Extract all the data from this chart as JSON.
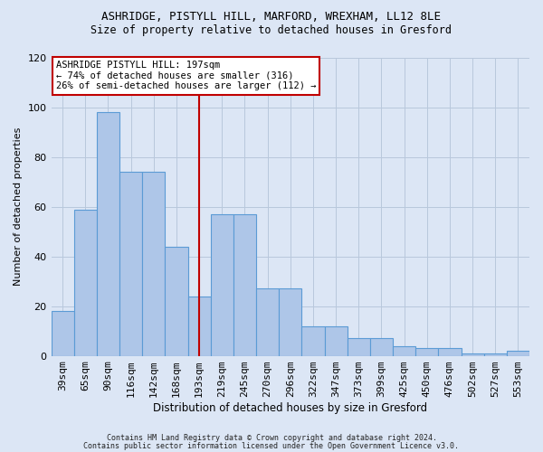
{
  "title1": "ASHRIDGE, PISTYLL HILL, MARFORD, WREXHAM, LL12 8LE",
  "title2": "Size of property relative to detached houses in Gresford",
  "xlabel": "Distribution of detached houses by size in Gresford",
  "ylabel": "Number of detached properties",
  "categories": [
    "39sqm",
    "65sqm",
    "90sqm",
    "116sqm",
    "142sqm",
    "168sqm",
    "193sqm",
    "219sqm",
    "245sqm",
    "270sqm",
    "296sqm",
    "322sqm",
    "347sqm",
    "373sqm",
    "399sqm",
    "425sqm",
    "450sqm",
    "476sqm",
    "502sqm",
    "527sqm",
    "553sqm"
  ],
  "bar_values": [
    18,
    59,
    98,
    74,
    74,
    44,
    24,
    57,
    57,
    27,
    27,
    12,
    12,
    7,
    7,
    4,
    3,
    3,
    1,
    1,
    2
  ],
  "bar_color": "#aec6e8",
  "bar_edge_color": "#5b9bd5",
  "vline_x": 6,
  "vline_color": "#c00000",
  "annotation_text": "ASHRIDGE PISTYLL HILL: 197sqm\n← 74% of detached houses are smaller (316)\n26% of semi-detached houses are larger (112) →",
  "annotation_box_color": "#ffffff",
  "annotation_box_edge": "#c00000",
  "ylim": [
    0,
    120
  ],
  "yticks": [
    0,
    20,
    40,
    60,
    80,
    100,
    120
  ],
  "footer1": "Contains HM Land Registry data © Crown copyright and database right 2024.",
  "footer2": "Contains public sector information licensed under the Open Government Licence v3.0.",
  "bg_color": "#dce6f5",
  "plot_bg_color": "#dce6f5"
}
